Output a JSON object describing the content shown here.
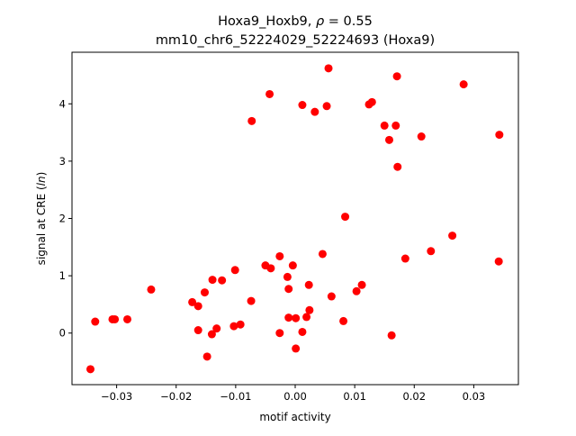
{
  "figure": {
    "title_line1": "Hoxa9_Hoxb9, ",
    "title_rho_symbol": "ρ",
    "title_rho_value": " = 0.55",
    "title_line2": "mm10_chr6_52224029_52224693 (Hoxa9)",
    "ylabel_prefix": "signal at CRE (",
    "ylabel_italic": "ln",
    "ylabel_suffix": ")"
  },
  "chart_data": {
    "type": "scatter",
    "title": "Hoxa9_Hoxb9, ρ = 0.55 mm10_chr6_52224029_52224693 (Hoxa9)",
    "xlabel": "motif activity",
    "ylabel": "signal at CRE (ln)",
    "xlim": [
      -0.0375,
      0.0375
    ],
    "ylim": [
      -0.9,
      4.9
    ],
    "xticks": [
      -0.03,
      -0.02,
      -0.01,
      0.0,
      0.01,
      0.02,
      0.03
    ],
    "xtick_labels": [
      "−0.03",
      "−0.02",
      "−0.01",
      "0.00",
      "0.01",
      "0.02",
      "0.03"
    ],
    "yticks": [
      0,
      1,
      2,
      3,
      4
    ],
    "ytick_labels": [
      "0",
      "1",
      "2",
      "3",
      "4"
    ],
    "grid": false,
    "marker_color": "#ff0000",
    "points": [
      {
        "x": -0.0344,
        "y": -0.63
      },
      {
        "x": -0.0336,
        "y": 0.2
      },
      {
        "x": -0.0307,
        "y": 0.24
      },
      {
        "x": -0.0303,
        "y": 0.24
      },
      {
        "x": -0.0282,
        "y": 0.24
      },
      {
        "x": -0.0242,
        "y": 0.76
      },
      {
        "x": -0.0173,
        "y": 0.54
      },
      {
        "x": -0.0163,
        "y": 0.47
      },
      {
        "x": -0.0163,
        "y": 0.05
      },
      {
        "x": -0.0152,
        "y": 0.71
      },
      {
        "x": -0.0148,
        "y": -0.41
      },
      {
        "x": -0.014,
        "y": -0.02
      },
      {
        "x": -0.0139,
        "y": 0.93
      },
      {
        "x": -0.0132,
        "y": 0.08
      },
      {
        "x": -0.0123,
        "y": 0.92
      },
      {
        "x": -0.0103,
        "y": 0.12
      },
      {
        "x": -0.0101,
        "y": 1.1
      },
      {
        "x": -0.0092,
        "y": 0.15
      },
      {
        "x": -0.0073,
        "y": 3.7
      },
      {
        "x": -0.0074,
        "y": 0.56
      },
      {
        "x": -0.005,
        "y": 1.18
      },
      {
        "x": -0.0043,
        "y": 4.17
      },
      {
        "x": -0.0041,
        "y": 1.13
      },
      {
        "x": -0.0026,
        "y": 1.34
      },
      {
        "x": -0.0026,
        "y": 0.0
      },
      {
        "x": -0.0013,
        "y": 0.98
      },
      {
        "x": -0.0011,
        "y": 0.77
      },
      {
        "x": -0.0011,
        "y": 0.27
      },
      {
        "x": -0.0004,
        "y": 1.18
      },
      {
        "x": 0.0001,
        "y": 0.26
      },
      {
        "x": 0.0001,
        "y": -0.27
      },
      {
        "x": 0.0012,
        "y": 0.02
      },
      {
        "x": 0.0012,
        "y": 3.98
      },
      {
        "x": 0.0019,
        "y": 0.28
      },
      {
        "x": 0.0023,
        "y": 0.84
      },
      {
        "x": 0.0024,
        "y": 0.4
      },
      {
        "x": 0.0033,
        "y": 3.86
      },
      {
        "x": 0.0046,
        "y": 1.38
      },
      {
        "x": 0.0053,
        "y": 3.96
      },
      {
        "x": 0.0056,
        "y": 4.62
      },
      {
        "x": 0.0061,
        "y": 0.64
      },
      {
        "x": 0.0081,
        "y": 0.21
      },
      {
        "x": 0.0084,
        "y": 2.03
      },
      {
        "x": 0.0103,
        "y": 0.73
      },
      {
        "x": 0.0112,
        "y": 0.84
      },
      {
        "x": 0.0124,
        "y": 3.99
      },
      {
        "x": 0.0129,
        "y": 4.03
      },
      {
        "x": 0.015,
        "y": 3.62
      },
      {
        "x": 0.0158,
        "y": 3.37
      },
      {
        "x": 0.0162,
        "y": -0.04
      },
      {
        "x": 0.0169,
        "y": 3.62
      },
      {
        "x": 0.0171,
        "y": 4.48
      },
      {
        "x": 0.0172,
        "y": 2.9
      },
      {
        "x": 0.0185,
        "y": 1.3
      },
      {
        "x": 0.0212,
        "y": 3.43
      },
      {
        "x": 0.0228,
        "y": 1.43
      },
      {
        "x": 0.0264,
        "y": 1.7
      },
      {
        "x": 0.0283,
        "y": 4.34
      },
      {
        "x": 0.0342,
        "y": 1.25
      },
      {
        "x": 0.0343,
        "y": 3.46
      }
    ]
  }
}
